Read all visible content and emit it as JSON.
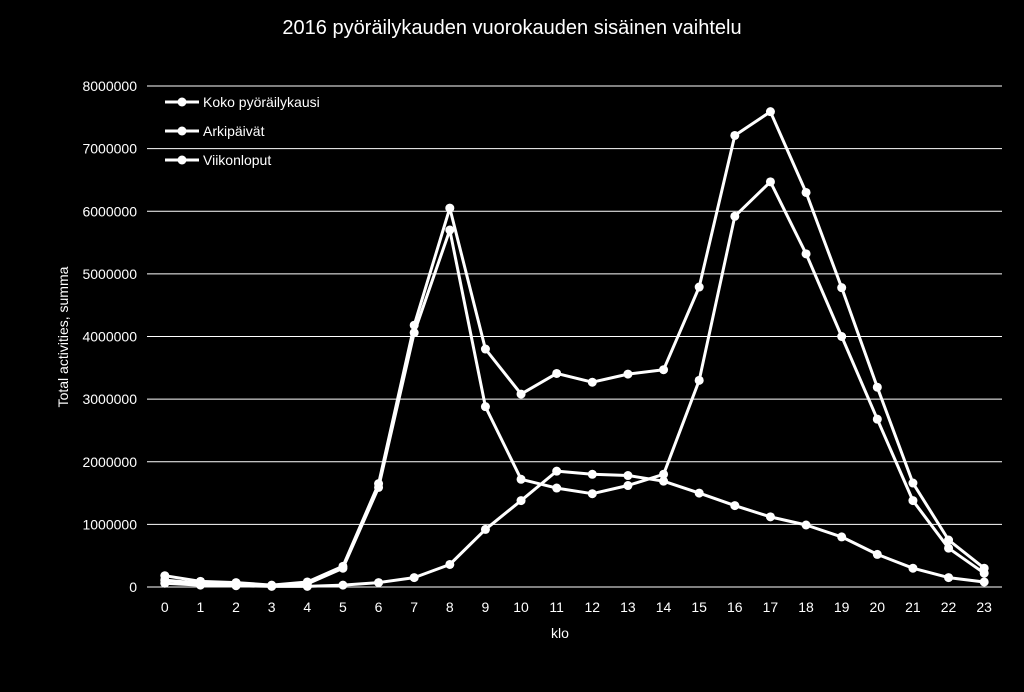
{
  "chart_data": {
    "type": "line",
    "title": "2016 pyöräilykauden vuorokauden sisäinen vaihtelu",
    "xlabel": "klo",
    "ylabel": "Total activities, summa",
    "ylim": [
      0,
      8000000
    ],
    "yticks": [
      "0",
      "1000000",
      "2000000",
      "3000000",
      "4000000",
      "5000000",
      "6000000",
      "7000000",
      "8000000"
    ],
    "categories": [
      "0",
      "1",
      "2",
      "3",
      "4",
      "5",
      "6",
      "7",
      "8",
      "9",
      "10",
      "11",
      "12",
      "13",
      "14",
      "15",
      "16",
      "17",
      "18",
      "19",
      "20",
      "21",
      "22",
      "23"
    ],
    "grid": true,
    "legend_position": "top-left",
    "colors": {
      "background": "#000000",
      "line": "#ffffff",
      "grid": "#ffffff"
    },
    "series": [
      {
        "name": "Koko pyöräilykausi",
        "values": [
          180000,
          90000,
          70000,
          30000,
          80000,
          330000,
          1650000,
          4180000,
          6050000,
          3800000,
          3080000,
          3410000,
          3270000,
          3400000,
          3470000,
          4790000,
          7210000,
          7590000,
          6300000,
          4780000,
          3190000,
          1660000,
          750000,
          300000
        ]
      },
      {
        "name": "Arkipäivät",
        "values": [
          110000,
          60000,
          50000,
          20000,
          50000,
          300000,
          1590000,
          4060000,
          5700000,
          2880000,
          1720000,
          1580000,
          1490000,
          1620000,
          1800000,
          3300000,
          5920000,
          6470000,
          5320000,
          4000000,
          2680000,
          1380000,
          620000,
          220000
        ]
      },
      {
        "name": "Viikonloput",
        "values": [
          60000,
          30000,
          20000,
          10000,
          10000,
          30000,
          70000,
          150000,
          360000,
          920000,
          1380000,
          1850000,
          1800000,
          1780000,
          1690000,
          1500000,
          1300000,
          1120000,
          990000,
          800000,
          520000,
          300000,
          150000,
          80000
        ]
      }
    ]
  }
}
